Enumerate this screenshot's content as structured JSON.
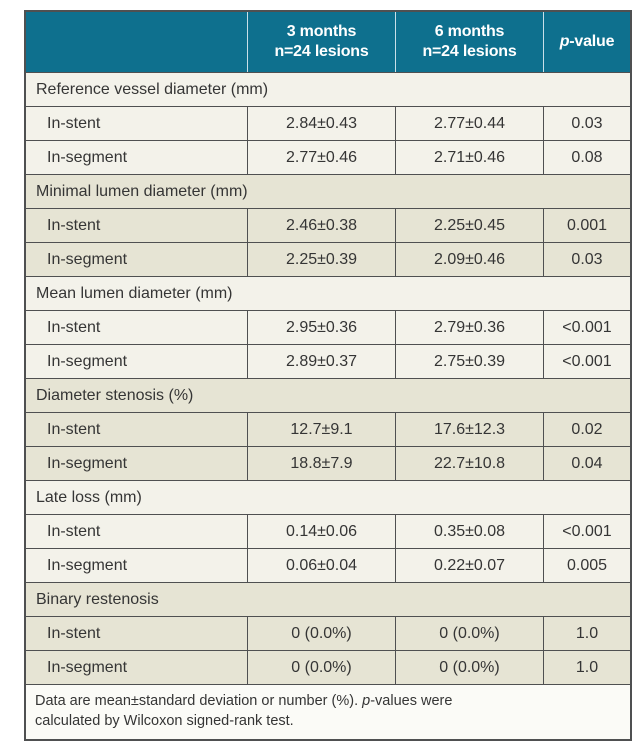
{
  "colors": {
    "header_teal": "#0e708e",
    "section_light": "#f3f2ea",
    "section_beige": "#e6e4d4",
    "border_gray": "#4f5051",
    "header_text": "#ffffff",
    "body_text": "#353535"
  },
  "header": {
    "col1": "",
    "col2_line1": "3 months",
    "col2_line2": "n=24 lesions",
    "col3_line1": "6 months",
    "col3_line2": "n=24 lesions",
    "col4_italic": "p",
    "col4_rest": "-value"
  },
  "sections": [
    {
      "title": "Reference vessel diameter (mm)",
      "rows": [
        {
          "label": "In-stent",
          "m3": "2.84±0.43",
          "m6": "2.77±0.44",
          "p": "0.03"
        },
        {
          "label": "In-segment",
          "m3": "2.77±0.46",
          "m6": "2.71±0.46",
          "p": "0.08"
        }
      ]
    },
    {
      "title": "Minimal lumen diameter (mm)",
      "rows": [
        {
          "label": "In-stent",
          "m3": "2.46±0.38",
          "m6": "2.25±0.45",
          "p": "0.001"
        },
        {
          "label": "In-segment",
          "m3": "2.25±0.39",
          "m6": "2.09±0.46",
          "p": "0.03"
        }
      ]
    },
    {
      "title": "Mean lumen diameter (mm)",
      "rows": [
        {
          "label": "In-stent",
          "m3": "2.95±0.36",
          "m6": "2.79±0.36",
          "p": "<0.001"
        },
        {
          "label": "In-segment",
          "m3": "2.89±0.37",
          "m6": "2.75±0.39",
          "p": "<0.001"
        }
      ]
    },
    {
      "title": "Diameter stenosis (%)",
      "rows": [
        {
          "label": "In-stent",
          "m3": "12.7±9.1",
          "m6": "17.6±12.3",
          "p": "0.02"
        },
        {
          "label": "In-segment",
          "m3": "18.8±7.9",
          "m6": "22.7±10.8",
          "p": "0.04"
        }
      ]
    },
    {
      "title": "Late loss (mm)",
      "rows": [
        {
          "label": "In-stent",
          "m3": "0.14±0.06",
          "m6": "0.35±0.08",
          "p": "<0.001"
        },
        {
          "label": "In-segment",
          "m3": "0.06±0.04",
          "m6": "0.22±0.07",
          "p": "0.005"
        }
      ]
    },
    {
      "title": "Binary restenosis",
      "rows": [
        {
          "label": "In-stent",
          "m3": "0 (0.0%)",
          "m6": "0 (0.0%)",
          "p": "1.0"
        },
        {
          "label": "In-segment",
          "m3": "0 (0.0%)",
          "m6": "0 (0.0%)",
          "p": "1.0"
        }
      ]
    }
  ],
  "footnote": {
    "line1_before": "Data are mean±standard deviation or number (%). ",
    "line1_italic": "p",
    "line1_after": "-values were",
    "line2": "calculated by Wilcoxon signed-rank test."
  }
}
